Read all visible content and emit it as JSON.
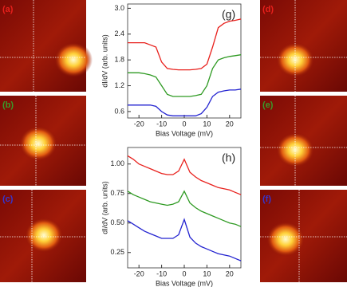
{
  "panels": [
    {
      "label": "(a)",
      "color": "#e8201c"
    },
    {
      "label": "(b)",
      "color": "#3a9a2a"
    },
    {
      "label": "(c)",
      "color": "#3535d0"
    },
    {
      "label": "(d)",
      "color": "#e8201c"
    },
    {
      "label": "(e)",
      "color": "#3a9a2a"
    },
    {
      "label": "(f)",
      "color": "#3535d0"
    }
  ],
  "chart_data": [
    {
      "type": "line",
      "annotation": "(g)",
      "x_label": "Bias Voltage (mV)",
      "y_label": "dI/dV (arb. units)",
      "x": [
        -25,
        -22.5,
        -20,
        -17.5,
        -15,
        -12.5,
        -10,
        -7.5,
        -5,
        -2.5,
        0,
        2.5,
        5,
        7.5,
        10,
        12.5,
        15,
        17.5,
        20,
        22.5,
        25
      ],
      "series": [
        {
          "color": "#e8201c",
          "values": [
            2.2,
            2.2,
            2.2,
            2.2,
            2.15,
            2.1,
            1.75,
            1.6,
            1.58,
            1.57,
            1.57,
            1.57,
            1.58,
            1.6,
            1.7,
            2.1,
            2.55,
            2.65,
            2.7,
            2.72,
            2.75
          ]
        },
        {
          "color": "#2e9a22",
          "values": [
            1.5,
            1.5,
            1.5,
            1.48,
            1.45,
            1.4,
            1.2,
            1.0,
            0.95,
            0.95,
            0.95,
            0.95,
            0.97,
            1.0,
            1.2,
            1.6,
            1.8,
            1.85,
            1.88,
            1.9,
            1.92
          ]
        },
        {
          "color": "#2323d0",
          "values": [
            0.75,
            0.75,
            0.75,
            0.75,
            0.75,
            0.72,
            0.6,
            0.52,
            0.5,
            0.5,
            0.5,
            0.5,
            0.5,
            0.55,
            0.7,
            0.95,
            1.05,
            1.08,
            1.1,
            1.1,
            1.12
          ]
        }
      ],
      "xlim": [
        -25,
        25
      ],
      "ylim": [
        0.45,
        3.1
      ],
      "xticks": [
        -20,
        -10,
        0,
        10,
        20
      ],
      "yticks": [
        0.6,
        1.2,
        1.8,
        2.4,
        {
          "value": 3,
          "label": "3.0"
        }
      ]
    },
    {
      "type": "line",
      "annotation": "(h)",
      "x_label": "Bias Voltage (mV)",
      "y_label": "dI/dV (arb. units)",
      "x": [
        -25,
        -22.5,
        -20,
        -17.5,
        -15,
        -12.5,
        -10,
        -7.5,
        -5,
        -2.5,
        0,
        2.5,
        5,
        7.5,
        10,
        12.5,
        15,
        17.5,
        20,
        22.5,
        25
      ],
      "series": [
        {
          "color": "#e8201c",
          "values": [
            1.07,
            1.04,
            1.0,
            0.98,
            0.96,
            0.94,
            0.92,
            0.91,
            0.91,
            0.94,
            1.04,
            0.93,
            0.89,
            0.86,
            0.84,
            0.82,
            0.8,
            0.79,
            0.78,
            0.76,
            0.74
          ]
        },
        {
          "color": "#2e9a22",
          "values": [
            0.77,
            0.74,
            0.72,
            0.7,
            0.68,
            0.67,
            0.66,
            0.65,
            0.66,
            0.68,
            0.77,
            0.67,
            0.63,
            0.6,
            0.58,
            0.56,
            0.54,
            0.52,
            0.5,
            0.49,
            0.47
          ]
        },
        {
          "color": "#2323d0",
          "values": [
            0.52,
            0.49,
            0.46,
            0.43,
            0.41,
            0.39,
            0.37,
            0.37,
            0.37,
            0.4,
            0.53,
            0.38,
            0.33,
            0.3,
            0.28,
            0.26,
            0.24,
            0.23,
            0.22,
            0.2,
            0.18
          ]
        }
      ],
      "xlim": [
        -25,
        25
      ],
      "ylim": [
        0.12,
        1.14
      ],
      "xticks": [
        -20,
        -10,
        0,
        10,
        20
      ],
      "yticks": [
        0.25,
        {
          "value": 0.5,
          "label": "0.50"
        },
        0.75,
        {
          "value": 1,
          "label": "1.00"
        }
      ]
    }
  ]
}
